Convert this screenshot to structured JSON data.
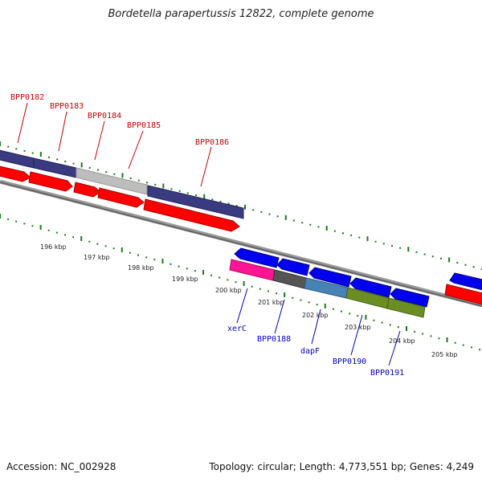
{
  "title": "Bordetella parapertussis 12822, complete genome",
  "footer": {
    "accession": "Accession: NC_002928",
    "stats": "Topology: circular; Length: 4,773,551 bp; Genes: 4,249"
  },
  "colors": {
    "label_top": "#cc0000",
    "label_bottom": "#0000cc",
    "tick": "#1a7a1a",
    "backbone": "#777777",
    "red": "#ff0000",
    "blue": "#0000ee",
    "purple": "#3a3a80",
    "gray": "#bdbdbd",
    "dark_gray": "#555555",
    "pink": "#ff1493",
    "steel": "#4682b4",
    "olive": "#6b8e23"
  },
  "labels_top": [
    "BPP0182",
    "BPP0183",
    "BPP0184",
    "BPP0185",
    "BPP0186"
  ],
  "labels_bottom": [
    "xerC",
    "BPP0188",
    "dapF",
    "BPP0190",
    "BPP0191"
  ],
  "kbp_labels": [
    "196 kbp",
    "197 kbp",
    "198 kbp",
    "199 kbp",
    "200 kbp",
    "201 kbp",
    "202 kbp",
    "203 kbp",
    "204 kbp",
    "205 kbp"
  ]
}
